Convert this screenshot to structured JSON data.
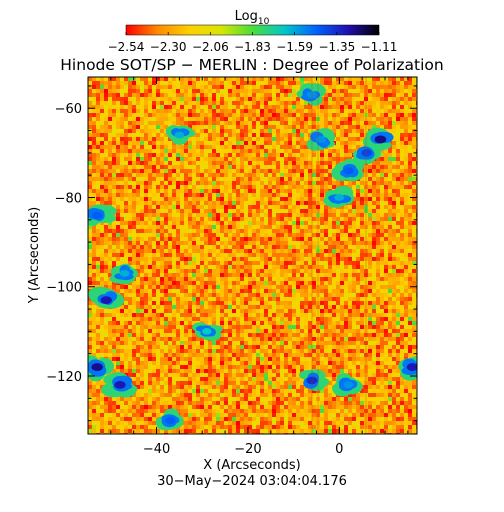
{
  "colorbar": {
    "title": "Log",
    "title_subscript": "10",
    "tick_labels": [
      "−2.54",
      "−2.30",
      "−2.06",
      "−1.83",
      "−1.59",
      "−1.35",
      "−1.11"
    ],
    "range": [
      -2.54,
      -1.11
    ],
    "colormap": [
      "#ff0000",
      "#ff8a00",
      "#ffcf00",
      "#d7e600",
      "#4cdd3a",
      "#00c8c8",
      "#0064ff",
      "#2010b0",
      "#000000"
    ]
  },
  "chart_data": {
    "type": "heatmap",
    "title": "Hinode SOT/SP − MERLIN : Degree of Polarization",
    "xlabel": "X (Arcseconds)",
    "ylabel": "Y (Arcseconds)",
    "xlim": [
      -55,
      17
    ],
    "ylim": [
      -133,
      -53
    ],
    "x_ticks": [
      -40,
      -20,
      0
    ],
    "x_tick_labels": [
      "−40",
      "−20",
      "0"
    ],
    "y_ticks": [
      -60,
      -80,
      -100,
      -120
    ],
    "y_tick_labels": [
      "−60",
      "−80",
      "−100",
      "−120"
    ],
    "value_range_log10": [
      -2.54,
      -1.11
    ],
    "background_level_log10": -2.3,
    "high_polarization_patches": [
      {
        "x": 9,
        "y": -67,
        "level": -1.25
      },
      {
        "x": 6,
        "y": -70,
        "level": -1.4
      },
      {
        "x": 2,
        "y": -74,
        "level": -1.45
      },
      {
        "x": -4,
        "y": -67,
        "level": -1.55
      },
      {
        "x": -6,
        "y": -57,
        "level": -1.55
      },
      {
        "x": -53,
        "y": -84,
        "level": -1.45
      },
      {
        "x": -51,
        "y": -103,
        "level": -1.3
      },
      {
        "x": -53,
        "y": -118,
        "level": -1.25
      },
      {
        "x": -48,
        "y": -122,
        "level": -1.3
      },
      {
        "x": -6,
        "y": -121,
        "level": -1.35
      },
      {
        "x": -47,
        "y": -97,
        "level": -1.6
      },
      {
        "x": -35,
        "y": -66,
        "level": -1.6
      },
      {
        "x": -37,
        "y": -130,
        "level": -1.45
      },
      {
        "x": 16,
        "y": -118,
        "level": -1.3
      },
      {
        "x": 2,
        "y": -122,
        "level": -1.55
      },
      {
        "x": 0,
        "y": -80,
        "level": -1.6
      },
      {
        "x": -29,
        "y": -110,
        "level": -1.65
      }
    ],
    "footer": "30−May−2024 03:04:04.176"
  }
}
